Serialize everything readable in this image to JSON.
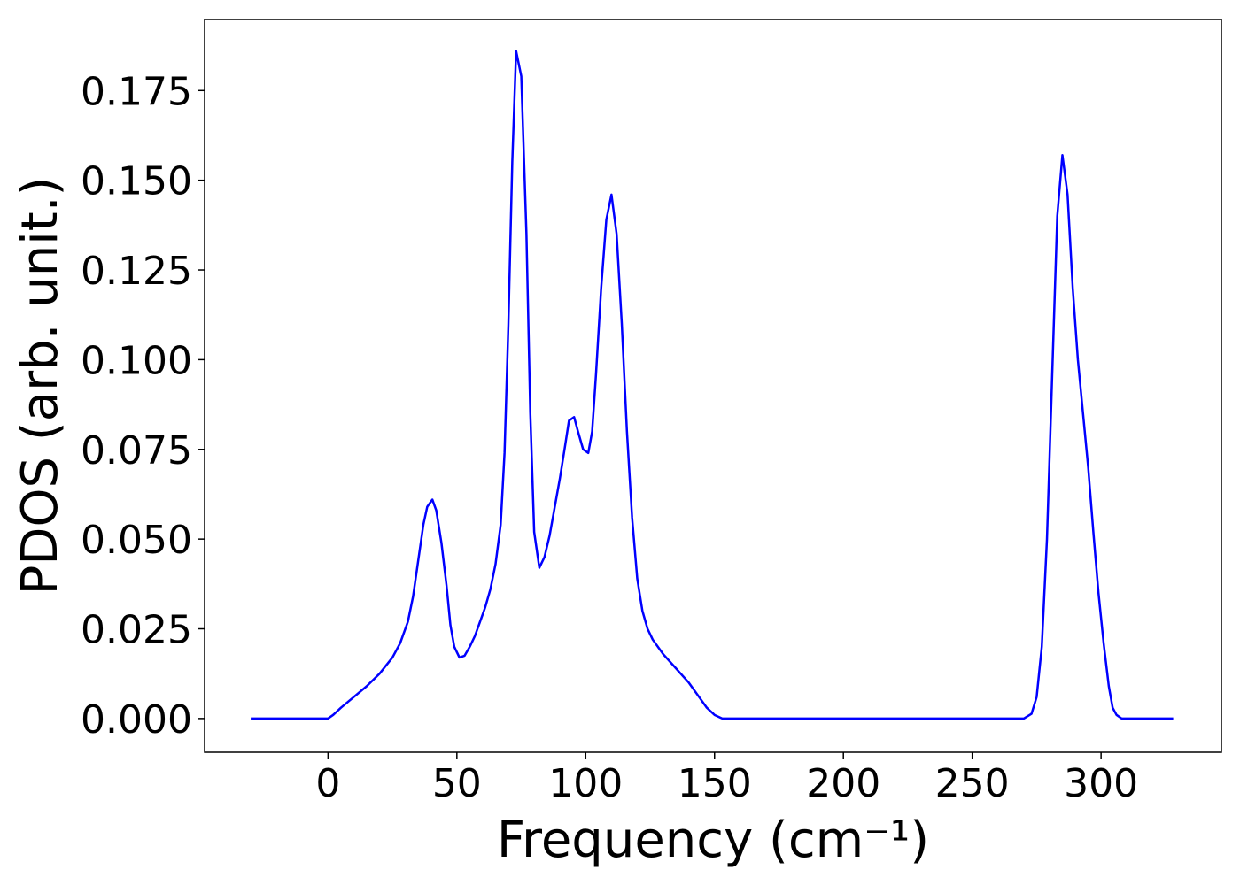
{
  "chart_data": {
    "type": "line",
    "xlabel": "Frequency (cm⁻¹)",
    "ylabel": "PDOS (arb. unit.)",
    "x": [
      -30,
      0,
      2,
      5,
      10,
      15,
      20,
      25,
      28,
      31,
      33,
      35,
      37,
      38.5,
      40.5,
      42,
      44,
      46,
      47.5,
      49,
      51,
      53,
      55,
      57,
      59,
      61,
      63,
      65,
      67,
      68.5,
      70,
      71.5,
      73,
      75,
      77,
      78.5,
      80,
      82,
      84,
      86,
      88,
      90,
      92,
      93.5,
      95.5,
      97,
      99,
      101,
      102.5,
      104,
      106,
      108,
      110,
      112,
      114,
      116,
      118,
      120,
      122,
      124,
      126,
      130,
      135,
      140,
      144,
      147,
      150,
      153,
      270,
      273,
      275,
      277,
      279,
      281,
      283,
      285,
      287,
      289,
      291,
      293,
      295,
      297,
      299,
      301,
      303,
      304.5,
      306,
      308,
      328
    ],
    "series": [
      {
        "name": "PDOS",
        "color": "#0000ff",
        "values": [
          0,
          0,
          0.001,
          0.003,
          0.006,
          0.009,
          0.0125,
          0.017,
          0.021,
          0.027,
          0.034,
          0.044,
          0.054,
          0.059,
          0.061,
          0.058,
          0.049,
          0.037,
          0.026,
          0.02,
          0.017,
          0.0175,
          0.02,
          0.023,
          0.027,
          0.031,
          0.036,
          0.043,
          0.054,
          0.074,
          0.11,
          0.155,
          0.186,
          0.179,
          0.135,
          0.085,
          0.052,
          0.042,
          0.045,
          0.051,
          0.059,
          0.067,
          0.076,
          0.083,
          0.084,
          0.08,
          0.075,
          0.074,
          0.08,
          0.096,
          0.12,
          0.139,
          0.146,
          0.135,
          0.11,
          0.08,
          0.056,
          0.039,
          0.03,
          0.025,
          0.022,
          0.018,
          0.014,
          0.01,
          0.006,
          0.003,
          0.001,
          0,
          0,
          0.0013,
          0.006,
          0.02,
          0.05,
          0.095,
          0.14,
          0.157,
          0.146,
          0.12,
          0.1,
          0.085,
          0.07,
          0.052,
          0.035,
          0.021,
          0.009,
          0.003,
          0.001,
          0,
          0
        ]
      }
    ],
    "xlim": [
      -47.9,
      346.7
    ],
    "ylim": [
      -0.0094,
      0.1948
    ],
    "xticks": [
      0,
      50,
      100,
      150,
      200,
      250,
      300
    ],
    "yticks": [
      {
        "value": 0,
        "label": "0.000"
      },
      {
        "value": 0.025,
        "label": "0.025"
      },
      {
        "value": 0.05,
        "label": "0.050"
      },
      {
        "value": 0.075,
        "label": "0.075"
      },
      {
        "value": 0.1,
        "label": "0.100"
      },
      {
        "value": 0.125,
        "label": "0.125"
      },
      {
        "value": 0.15,
        "label": "0.150"
      },
      {
        "value": 0.175,
        "label": "0.175"
      }
    ],
    "grid": false
  }
}
